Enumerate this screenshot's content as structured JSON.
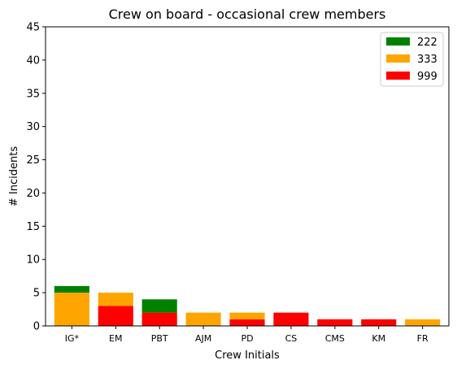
{
  "chart_data": {
    "type": "bar",
    "stacked": true,
    "title": "Crew on board - occasional crew members",
    "xlabel": "Crew Initials",
    "ylabel": "# Incidents",
    "ylim": [
      0,
      45
    ],
    "yticks": [
      0,
      5,
      10,
      15,
      20,
      25,
      30,
      35,
      40,
      45
    ],
    "grid": false,
    "legend_position": "top-right",
    "categories": [
      "IG*",
      "EM",
      "PBT",
      "AJM",
      "PD",
      "CS",
      "CMS",
      "KM",
      "FR"
    ],
    "series": [
      {
        "name": "999",
        "color": "#ff0000",
        "values": [
          0,
          3,
          2,
          0,
          1,
          2,
          1,
          1,
          0
        ]
      },
      {
        "name": "333",
        "color": "#ffa500",
        "values": [
          5,
          2,
          0,
          2,
          1,
          0,
          0,
          0,
          1
        ]
      },
      {
        "name": "222",
        "color": "#008000",
        "values": [
          1,
          0,
          2,
          0,
          0,
          0,
          0,
          0,
          0
        ]
      }
    ],
    "legend_order": [
      "222",
      "333",
      "999"
    ]
  }
}
